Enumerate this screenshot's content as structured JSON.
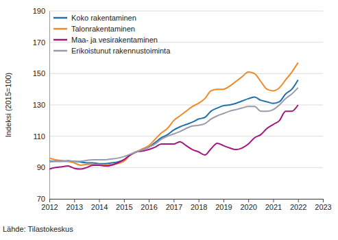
{
  "chart_data": {
    "type": "line",
    "y_label": "Indeksi (2015=100)",
    "source": "Lähde: Tilastokeskus",
    "x": [
      2012,
      2012.25,
      2012.5,
      2012.75,
      2013,
      2013.25,
      2013.5,
      2013.75,
      2014,
      2014.25,
      2014.5,
      2014.75,
      2015,
      2015.25,
      2015.5,
      2015.75,
      2016,
      2016.25,
      2016.5,
      2016.75,
      2017,
      2017.25,
      2017.5,
      2017.75,
      2018,
      2018.25,
      2018.5,
      2018.75,
      2019,
      2019.25,
      2019.5,
      2019.75,
      2020,
      2020.25,
      2020.5,
      2020.75,
      2021,
      2021.25,
      2021.5,
      2021.75,
      2022
    ],
    "series": [
      {
        "name": "Koko rakentaminen",
        "color": "#1f6fa8",
        "values": [
          94,
          94,
          94,
          94,
          94,
          93.5,
          93,
          93,
          92.5,
          92.5,
          93,
          93.5,
          95,
          98,
          100,
          101.5,
          103,
          106,
          109,
          111,
          114,
          116,
          117.5,
          119,
          121,
          122,
          126,
          128,
          129.5,
          130,
          131,
          132.5,
          134,
          135,
          133,
          132,
          131,
          132,
          137,
          140,
          146
        ]
      },
      {
        "name": "Talonrakentaminen",
        "color": "#f0892a",
        "values": [
          96,
          95,
          94.5,
          94,
          93,
          91.5,
          92,
          92,
          92,
          91.5,
          92,
          92.5,
          94,
          98,
          100,
          102,
          104,
          108,
          112,
          115,
          120,
          123,
          126,
          129,
          131,
          134,
          139,
          140,
          140,
          142,
          145,
          148,
          151,
          150,
          145,
          140,
          139,
          141,
          146,
          151,
          157
        ]
      },
      {
        "name": "Maa- ja vesirakentaminen",
        "color": "#a5157f",
        "values": [
          89,
          90,
          90.5,
          91,
          89.5,
          89,
          90,
          91.5,
          91.5,
          91,
          91.5,
          93,
          95,
          98,
          100,
          100.5,
          101.5,
          103,
          105,
          105,
          105,
          106.5,
          104,
          101.5,
          100,
          98,
          102,
          105.5,
          104,
          102.5,
          101.5,
          102.5,
          105,
          109,
          111,
          115,
          117.5,
          120,
          126,
          126,
          130
        ]
      },
      {
        "name": "Erikoistunut rakennustoiminta",
        "color": "#9a9aaa",
        "values": [
          93.5,
          94,
          94,
          94.5,
          94,
          94,
          94.5,
          95,
          95,
          95,
          95.5,
          96,
          97,
          98.5,
          100,
          101.5,
          103,
          105,
          108,
          110,
          111.5,
          113,
          115,
          116.5,
          117,
          118,
          121,
          123,
          124.5,
          126,
          127,
          128,
          129,
          129,
          126,
          126,
          127,
          130,
          134,
          137,
          141
        ]
      }
    ],
    "xlim": [
      2012,
      2023
    ],
    "xticks": [
      2012,
      2013,
      2014,
      2015,
      2016,
      2017,
      2018,
      2019,
      2020,
      2021,
      2022,
      2023
    ],
    "ylim": [
      70,
      190
    ],
    "yticks": [
      70,
      90,
      110,
      130,
      150,
      170,
      190
    ],
    "grid": true,
    "legend": "upper left"
  }
}
